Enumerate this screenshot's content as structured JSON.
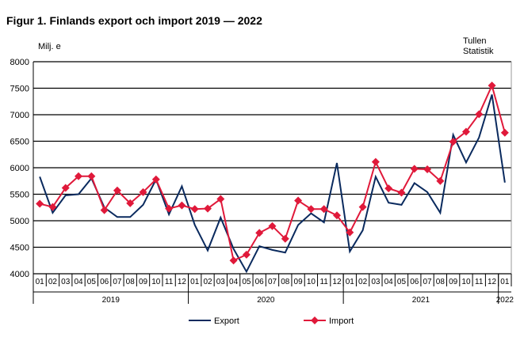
{
  "chart_data": {
    "type": "line",
    "title": "Figur 1. Finlands export och import 2019 — 2022",
    "ylabel": "Milj. e",
    "source_label": "Tullen\nStatistik",
    "ylim": [
      4000,
      8000
    ],
    "yticks": [
      4000,
      4500,
      5000,
      5500,
      6000,
      6500,
      7000,
      7500,
      8000
    ],
    "grid": true,
    "legend": "bottom",
    "categories": [
      "01",
      "02",
      "03",
      "04",
      "05",
      "06",
      "07",
      "08",
      "09",
      "10",
      "11",
      "12",
      "01",
      "02",
      "03",
      "04",
      "05",
      "06",
      "07",
      "08",
      "09",
      "10",
      "11",
      "12",
      "01",
      "02",
      "03",
      "04",
      "05",
      "06",
      "07",
      "08",
      "09",
      "10",
      "11",
      "12",
      "01"
    ],
    "years": [
      {
        "label": "2019",
        "start": 0,
        "count": 12
      },
      {
        "label": "2020",
        "start": 12,
        "count": 12
      },
      {
        "label": "2021",
        "start": 24,
        "count": 12
      },
      {
        "label": "2022",
        "start": 36,
        "count": 1
      }
    ],
    "series": [
      {
        "name": "Export",
        "color": "#0a2a5e",
        "marker": "none",
        "values": [
          5830,
          5150,
          5480,
          5500,
          5800,
          5250,
          5070,
          5070,
          5300,
          5780,
          5120,
          5650,
          4920,
          4440,
          5060,
          4470,
          4040,
          4520,
          4450,
          4400,
          4920,
          5140,
          4970,
          6090,
          4420,
          4820,
          5830,
          5340,
          5300,
          5710,
          5540,
          5150,
          6620,
          6100,
          6570,
          7380,
          5720
        ]
      },
      {
        "name": "Import",
        "color": "#e0193a",
        "marker": "diamond",
        "values": [
          5320,
          5260,
          5620,
          5840,
          5840,
          5200,
          5570,
          5330,
          5540,
          5780,
          5230,
          5290,
          5220,
          5230,
          5410,
          4250,
          4360,
          4770,
          4900,
          4660,
          5380,
          5220,
          5220,
          5100,
          4780,
          5260,
          6110,
          5610,
          5530,
          5980,
          5970,
          5750,
          6490,
          6680,
          7010,
          7550,
          6660
        ]
      }
    ]
  }
}
